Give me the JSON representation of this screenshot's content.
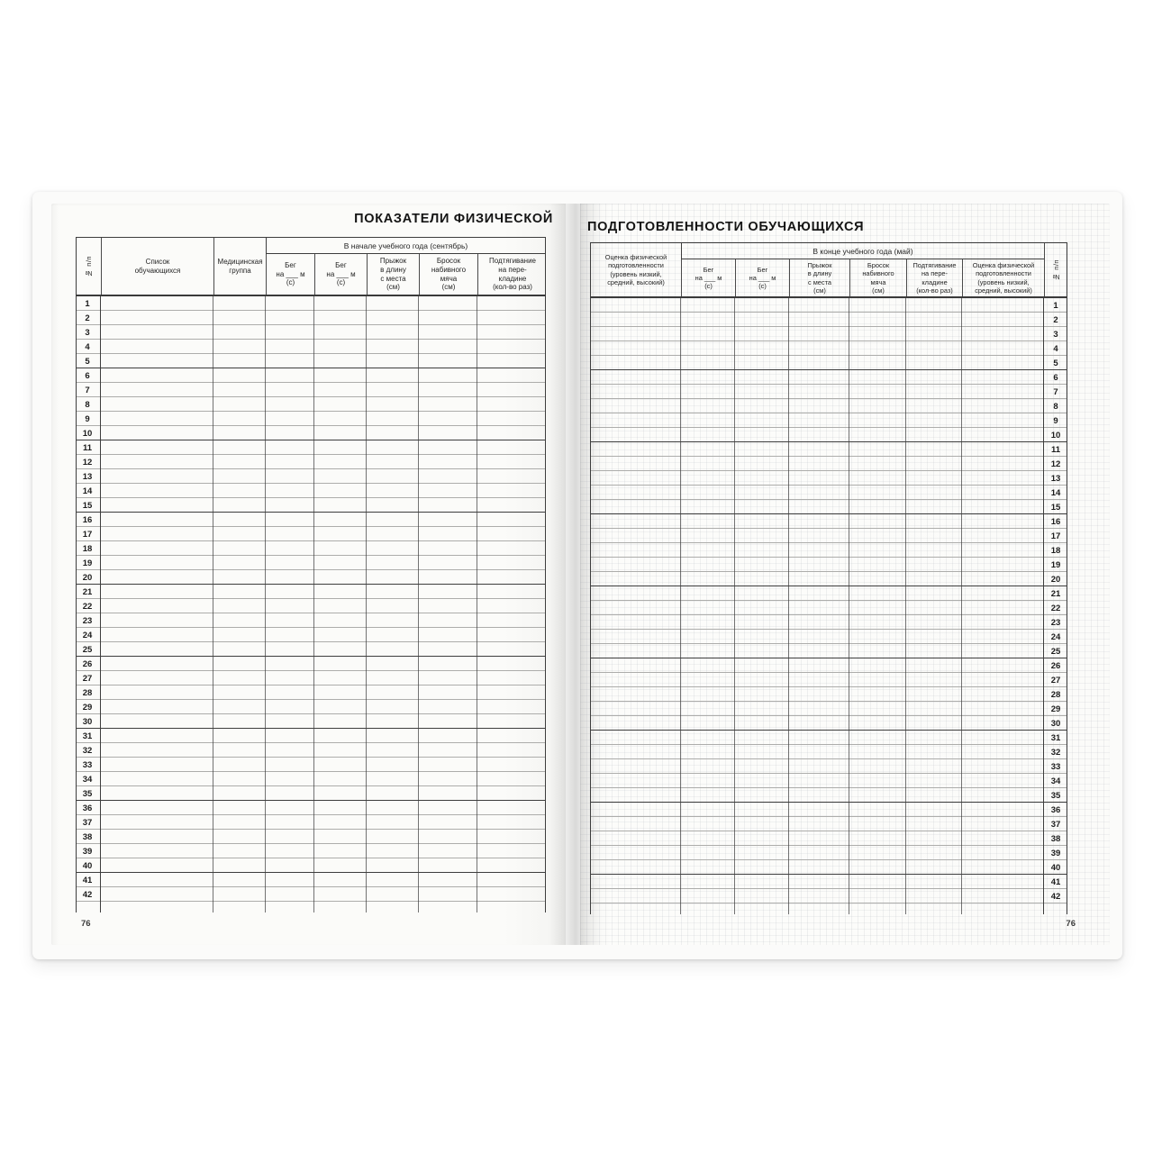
{
  "left_page": {
    "title": "ПОКАЗАТЕЛИ ФИЗИЧЕСКОЙ",
    "band": "В начале учебного года (сентябрь)",
    "page_number": "76",
    "columns": {
      "num": "№ п/п",
      "students": "Список\nобучающихся",
      "med_group": "Медицинская\nгруппа",
      "run1": "Бег\nна ___ м\n(с)",
      "run2": "Бег\nна ___ м\n(с)",
      "long_jump": "Прыжок\nв длину\nс места\n(см)",
      "ball_throw": "Бросок\nнабивного\nмяча\n(см)",
      "pull_ups": "Подтягивание\nна пере-\nкладине\n(кол-во раз)"
    }
  },
  "right_page": {
    "title": "ПОДГОТОВЛЕННОСТИ ОБУЧАЮЩИХСЯ",
    "band": "В конце учебного года (май)",
    "page_number": "76",
    "columns": {
      "fitness_eval_start": "Оценка физической\nподготовленности\n(уровень низкий,\nсредний, высокий)",
      "run1": "Бег\nна ___ м\n(с)",
      "run2": "Бег\nна ___ м\n(с)",
      "long_jump": "Прыжок\nв длину\nс места\n(см)",
      "ball_throw": "Бросок\nнабивного\nмяча\n(см)",
      "pull_ups": "Подтягивание\nна пере-\nкладине\n(кол-во раз)",
      "fitness_eval_end": "Оценка физической\nподготовленности\n(уровень низкий,\nсредний, высокий)",
      "num": "№ п/п"
    }
  },
  "rows": {
    "count": 42,
    "numbers": [
      "1",
      "2",
      "3",
      "4",
      "5",
      "6",
      "7",
      "8",
      "9",
      "10",
      "11",
      "12",
      "13",
      "14",
      "15",
      "16",
      "17",
      "18",
      "19",
      "20",
      "21",
      "22",
      "23",
      "24",
      "25",
      "26",
      "27",
      "28",
      "29",
      "30",
      "31",
      "32",
      "33",
      "34",
      "35",
      "36",
      "37",
      "38",
      "39",
      "40",
      "41",
      "42"
    ]
  },
  "colors": {
    "paper": "#fbfbf9",
    "line_dark": "#3d3d3d",
    "line_light": "#adadab",
    "text": "#1e1e1e"
  }
}
